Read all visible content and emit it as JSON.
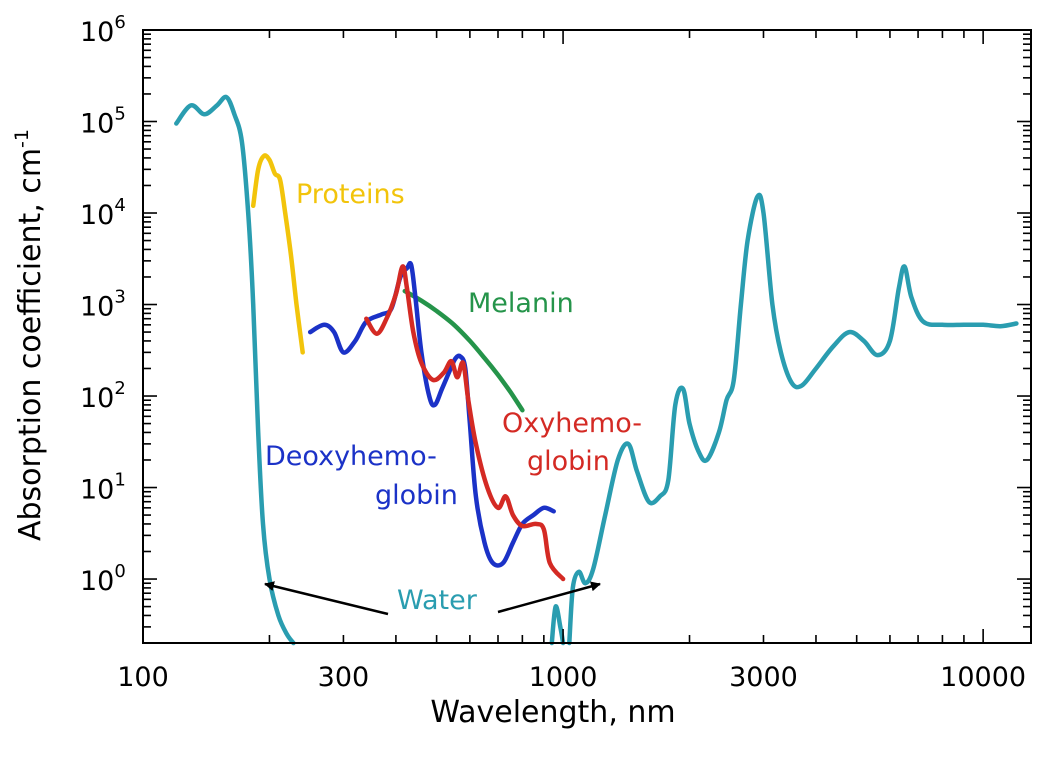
{
  "chart_data": {
    "type": "line",
    "title": "",
    "xlabel": "Wavelength, nm",
    "ylabel": "Absorption coefficient, cm",
    "ylabel_sup": "-1",
    "x_scale": "log",
    "y_scale": "log",
    "xlim": [
      100,
      13000
    ],
    "ylim": [
      0.2,
      1000000
    ],
    "grid": false,
    "x_ticks": [
      {
        "value": 100,
        "label": "100"
      },
      {
        "value": 300,
        "label": "300"
      },
      {
        "value": 1000,
        "label": "1000"
      },
      {
        "value": 3000,
        "label": "3000"
      },
      {
        "value": 10000,
        "label": "10000"
      }
    ],
    "y_ticks": [
      {
        "value": 1,
        "base": "10",
        "exp": "0"
      },
      {
        "value": 10,
        "base": "10",
        "exp": "1"
      },
      {
        "value": 100,
        "base": "10",
        "exp": "2"
      },
      {
        "value": 1000,
        "base": "10",
        "exp": "3"
      },
      {
        "value": 10000,
        "base": "10",
        "exp": "4"
      },
      {
        "value": 100000,
        "base": "10",
        "exp": "5"
      },
      {
        "value": 1000000,
        "base": "10",
        "exp": "6"
      }
    ],
    "series": [
      {
        "name": "Water",
        "color": "#2a9db0",
        "segments": [
          [
            [
              120,
              95000
            ],
            [
              130,
              150000
            ],
            [
              140,
              120000
            ],
            [
              150,
              150000
            ],
            [
              158,
              185000
            ],
            [
              165,
              120000
            ],
            [
              172,
              60000
            ],
            [
              178,
              10000
            ],
            [
              183,
              1000
            ],
            [
              188,
              40
            ],
            [
              193,
              4
            ],
            [
              200,
              1
            ],
            [
              210,
              0.4
            ],
            [
              220,
              0.25
            ],
            [
              228,
              0.2
            ]
          ],
          [
            [
              940,
              0.2
            ],
            [
              960,
              0.5
            ],
            [
              985,
              0.3
            ],
            [
              1000,
              0.2
            ]
          ],
          [
            [
              1035,
              0.2
            ],
            [
              1055,
              0.8
            ],
            [
              1090,
              1.2
            ],
            [
              1130,
              0.9
            ],
            [
              1180,
              1.3
            ],
            [
              1260,
              5
            ],
            [
              1350,
              20
            ],
            [
              1430,
              30
            ],
            [
              1500,
              15
            ],
            [
              1600,
              7
            ],
            [
              1700,
              8
            ],
            [
              1780,
              12
            ],
            [
              1850,
              80
            ],
            [
              1930,
              120
            ],
            [
              2000,
              50
            ],
            [
              2100,
              25
            ],
            [
              2200,
              20
            ],
            [
              2350,
              40
            ],
            [
              2450,
              90
            ],
            [
              2550,
              150
            ],
            [
              2650,
              1000
            ],
            [
              2750,
              5000
            ],
            [
              2900,
              15000
            ],
            [
              3000,
              10000
            ],
            [
              3150,
              1000
            ],
            [
              3300,
              300
            ],
            [
              3500,
              140
            ],
            [
              3700,
              130
            ],
            [
              4000,
              200
            ],
            [
              4400,
              350
            ],
            [
              4800,
              500
            ],
            [
              5200,
              400
            ],
            [
              5600,
              280
            ],
            [
              6000,
              400
            ],
            [
              6300,
              1500
            ],
            [
              6500,
              2600
            ],
            [
              6750,
              1200
            ],
            [
              7200,
              650
            ],
            [
              8000,
              600
            ],
            [
              9000,
              600
            ],
            [
              10000,
              600
            ],
            [
              11000,
              580
            ],
            [
              12000,
              620
            ]
          ]
        ]
      },
      {
        "name": "Proteins",
        "color": "#f2c40b",
        "segments": [
          [
            [
              183,
              12000
            ],
            [
              188,
              30000
            ],
            [
              194,
              42000
            ],
            [
              200,
              38000
            ],
            [
              206,
              27000
            ],
            [
              212,
              23000
            ],
            [
              218,
              10000
            ],
            [
              225,
              3500
            ],
            [
              232,
              1000
            ],
            [
              240,
              300
            ]
          ]
        ]
      },
      {
        "name": "Melanin",
        "color": "#25944a",
        "segments": [
          [
            [
              420,
              1400
            ],
            [
              460,
              1100
            ],
            [
              500,
              850
            ],
            [
              550,
              600
            ],
            [
              600,
              400
            ],
            [
              650,
              260
            ],
            [
              700,
              170
            ],
            [
              750,
              110
            ],
            [
              800,
              70
            ]
          ]
        ]
      },
      {
        "name": "Deoxyhemo-globin",
        "color": "#1b32c7",
        "segments": [
          [
            [
              250,
              500
            ],
            [
              270,
              600
            ],
            [
              285,
              500
            ],
            [
              300,
              300
            ],
            [
              320,
              400
            ],
            [
              340,
              650
            ],
            [
              370,
              780
            ],
            [
              390,
              900
            ],
            [
              410,
              2000
            ],
            [
              425,
              2500
            ],
            [
              435,
              2700
            ],
            [
              445,
              1200
            ],
            [
              460,
              300
            ],
            [
              480,
              100
            ],
            [
              495,
              80
            ],
            [
              515,
              120
            ],
            [
              540,
              200
            ],
            [
              555,
              260
            ],
            [
              570,
              270
            ],
            [
              585,
              200
            ],
            [
              600,
              50
            ],
            [
              620,
              8
            ],
            [
              650,
              2.5
            ],
            [
              680,
              1.5
            ],
            [
              720,
              1.5
            ],
            [
              760,
              2.5
            ],
            [
              800,
              4
            ],
            [
              850,
              5
            ],
            [
              900,
              6
            ],
            [
              950,
              5.5
            ]
          ]
        ]
      },
      {
        "name": "Oxyhemo-globin",
        "color": "#d42a24",
        "segments": [
          [
            [
              340,
              700
            ],
            [
              360,
              480
            ],
            [
              380,
              700
            ],
            [
              400,
              1300
            ],
            [
              415,
              2600
            ],
            [
              425,
              1500
            ],
            [
              440,
              500
            ],
            [
              460,
              230
            ],
            [
              490,
              150
            ],
            [
              520,
              180
            ],
            [
              542,
              240
            ],
            [
              560,
              160
            ],
            [
              578,
              230
            ],
            [
              595,
              90
            ],
            [
              620,
              30
            ],
            [
              660,
              10
            ],
            [
              700,
              6
            ],
            [
              730,
              8
            ],
            [
              760,
              5
            ],
            [
              800,
              3.8
            ],
            [
              860,
              4
            ],
            [
              900,
              3.5
            ],
            [
              930,
              1.5
            ],
            [
              1000,
              1
            ]
          ]
        ]
      }
    ],
    "annotations": [
      {
        "text": "Proteins",
        "color": "#f2c40b"
      },
      {
        "text": "Melanin",
        "color": "#25944a"
      },
      {
        "text": "Oxyhemo-",
        "color": "#d42a24"
      },
      {
        "text": "globin",
        "color": "#d42a24"
      },
      {
        "text": "Deoxyhemo-",
        "color": "#1b32c7"
      },
      {
        "text": "globin",
        "color": "#1b32c7"
      },
      {
        "text": "Water",
        "color": "#2a9db0"
      }
    ]
  }
}
